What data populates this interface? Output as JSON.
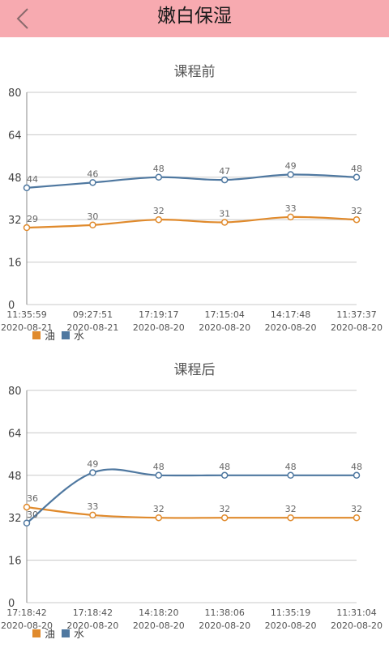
{
  "header": {
    "title": "嫩白保湿",
    "back_icon": "chevron-left-icon"
  },
  "colors": {
    "header_bg": "#f7aab0",
    "oil": "#e08a2c",
    "water": "#4f78a0",
    "grid": "#c8c8c8"
  },
  "legend": {
    "oil_label": "油",
    "water_label": "水"
  },
  "chart_data": [
    {
      "type": "line",
      "title": "课程前",
      "ylim": [
        0,
        80
      ],
      "yticks": [
        0,
        16,
        32,
        48,
        64,
        80
      ],
      "x_times": [
        "11:35:59",
        "09:27:51",
        "17:19:17",
        "17:15:04",
        "14:17:48",
        "11:37:37"
      ],
      "x_dates": [
        "2020-08-21",
        "2020-08-21",
        "2020-08-20",
        "2020-08-20",
        "2020-08-20",
        "2020-08-20"
      ],
      "series": [
        {
          "name": "油",
          "values": [
            29,
            30,
            32,
            31,
            33,
            32
          ]
        },
        {
          "name": "水",
          "values": [
            44,
            46,
            48,
            47,
            49,
            48
          ]
        }
      ]
    },
    {
      "type": "line",
      "title": "课程后",
      "ylim": [
        0,
        80
      ],
      "yticks": [
        0,
        16,
        32,
        48,
        64,
        80
      ],
      "x_times": [
        "17:18:42",
        "17:18:42",
        "14:18:20",
        "11:38:06",
        "11:35:19",
        "11:31:04"
      ],
      "x_dates": [
        "2020-08-20",
        "2020-08-20",
        "2020-08-20",
        "2020-08-20",
        "2020-08-20",
        "2020-08-20"
      ],
      "series": [
        {
          "name": "油",
          "values": [
            36,
            33,
            32,
            32,
            32,
            32
          ]
        },
        {
          "name": "水",
          "values": [
            30,
            49,
            48,
            48,
            48,
            48
          ]
        }
      ]
    }
  ]
}
